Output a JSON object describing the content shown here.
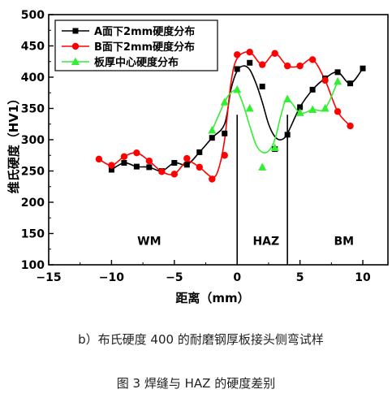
{
  "chart_data": {
    "type": "line",
    "xlabel": "距离（mm）",
    "ylabel": "维氏硬度（HV1）",
    "xlim": [
      -15,
      12
    ],
    "ylim": [
      100,
      500
    ],
    "xticks": [
      -15,
      -10,
      -5,
      0,
      5,
      10
    ],
    "yticks": [
      100,
      150,
      200,
      250,
      300,
      350,
      400,
      450,
      500
    ],
    "grid": false,
    "legend_position": "top-left",
    "zone_lines": [
      0,
      4
    ],
    "zone_labels": [
      {
        "text": "WM",
        "x": -7,
        "y": 138
      },
      {
        "text": "HAZ",
        "x": 2.3,
        "y": 138
      },
      {
        "text": "BM",
        "x": 8.5,
        "y": 138
      }
    ],
    "series": [
      {
        "name": "A面下2mm硬度分布",
        "color": "#000000",
        "marker": "square",
        "x": [
          -10,
          -9,
          -8,
          -7,
          -6,
          -5,
          -4,
          -3,
          -2,
          -1,
          0,
          1,
          2,
          3,
          4,
          5,
          6,
          7,
          8,
          9,
          10
        ],
        "y": [
          252,
          263,
          257,
          256,
          250,
          263,
          260,
          280,
          303,
          310,
          413,
          423,
          385,
          285,
          308,
          352,
          380,
          398,
          408,
          390,
          414
        ],
        "curve_x": [
          -10,
          -9,
          -8,
          -7,
          -6,
          -5,
          -4,
          -3,
          -2,
          -1,
          -0.5,
          0,
          0.5,
          1,
          1.5,
          2,
          2.5,
          3,
          3.5,
          4,
          5,
          6,
          7,
          8,
          9,
          10
        ],
        "curve_y": [
          252,
          263,
          257,
          256,
          250,
          263,
          260,
          280,
          303,
          325,
          380,
          410,
          418,
          412,
          390,
          360,
          325,
          305,
          300,
          310,
          352,
          380,
          398,
          408,
          390,
          414
        ]
      },
      {
        "name": "B面下2mm硬度分布",
        "color": "#ff0000",
        "marker": "circle",
        "x": [
          -11,
          -10,
          -9,
          -8,
          -7,
          -6,
          -5,
          -4,
          -3,
          -2,
          -1,
          0,
          1,
          2,
          3,
          4,
          5,
          6,
          7,
          8,
          9
        ],
        "y": [
          269,
          259,
          273,
          279,
          266,
          249,
          245,
          270,
          256,
          237,
          275,
          436,
          440,
          420,
          438,
          418,
          418,
          428,
          395,
          345,
          322
        ],
        "curve_x": [
          -11,
          -10,
          -9,
          -8,
          -7,
          -6,
          -5,
          -4,
          -3,
          -2,
          -1.5,
          -1,
          -0.5,
          0,
          1,
          2,
          3,
          4,
          5,
          6,
          7,
          8,
          9
        ],
        "curve_y": [
          269,
          259,
          273,
          279,
          266,
          249,
          245,
          265,
          256,
          240,
          252,
          300,
          390,
          430,
          440,
          420,
          438,
          418,
          418,
          428,
          395,
          345,
          322
        ]
      },
      {
        "name": "板厚中心硬度分布",
        "color": "#33ee33",
        "marker": "triangle",
        "x": [
          -2,
          -1,
          0,
          1,
          2,
          3,
          4,
          5,
          6,
          7,
          8
        ],
        "y": [
          315,
          360,
          380,
          350,
          256,
          287,
          365,
          343,
          348,
          350,
          393
        ],
        "curve_x": [
          -2,
          -1,
          -0.5,
          0,
          0.5,
          1,
          1.5,
          2,
          2.5,
          3,
          3.5,
          4,
          5,
          6,
          7,
          8
        ],
        "curve_y": [
          315,
          360,
          375,
          378,
          355,
          322,
          292,
          280,
          282,
          300,
          340,
          365,
          343,
          348,
          350,
          393
        ]
      }
    ]
  },
  "captions": {
    "sub": "b）布氏硬度 400 的耐磨钢厚板接头侧弯试样",
    "figure": "图 3  焊缝与 HAZ 的硬度差别"
  }
}
